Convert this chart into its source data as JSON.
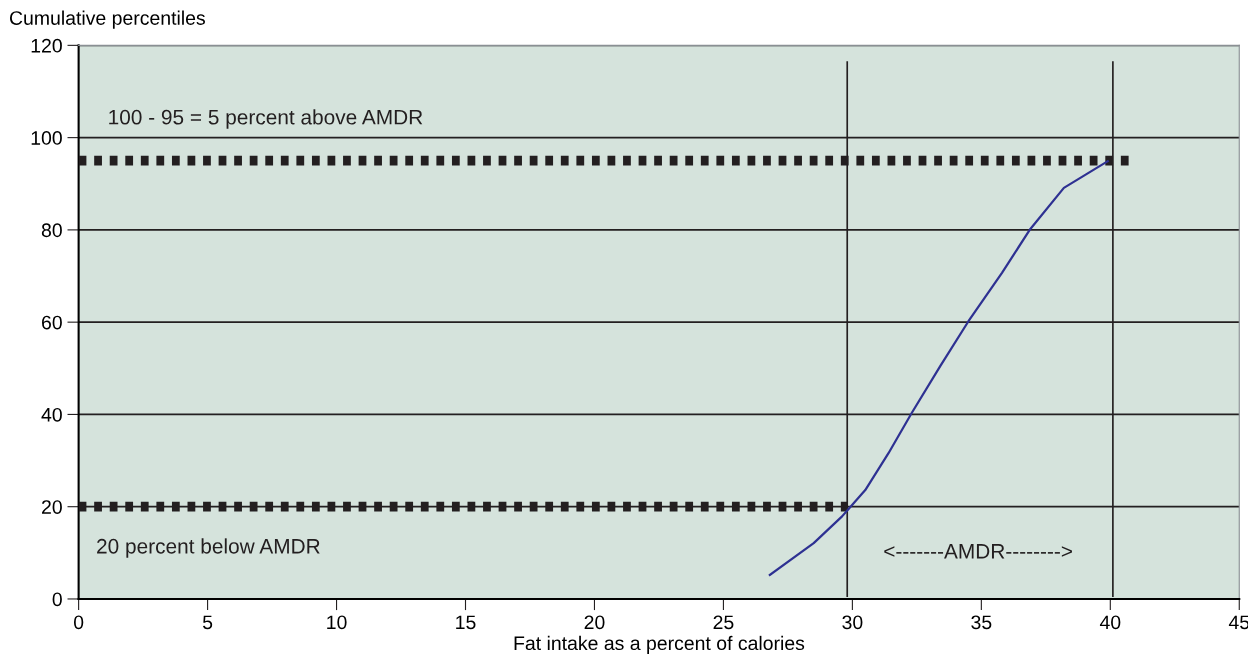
{
  "chart_data": {
    "type": "line",
    "xlabel": "Fat intake as a percent of calories",
    "ylabel": "Cumulative percentiles",
    "xlim": [
      0,
      45
    ],
    "xticks": [
      0,
      5,
      10,
      15,
      20,
      25,
      30,
      35,
      40,
      45
    ],
    "ylim": [
      0,
      120
    ],
    "yticks": [
      0,
      20,
      40,
      60,
      80,
      100,
      120
    ],
    "grid": "y",
    "series": [
      {
        "color": "#2e3192",
        "line_style": "solid",
        "x": [
          26.8,
          28.5,
          29.6,
          30.5,
          31.4,
          32.3,
          33.4,
          34.5,
          35.8,
          36.9,
          38.2,
          39.9
        ],
        "values": [
          5.2,
          12.1,
          17.9,
          23.6,
          31.6,
          40.3,
          50.4,
          60.2,
          70.7,
          80.2,
          89.1,
          94.9
        ]
      },
      {
        "color": "#231f20",
        "line_style": "dotted",
        "x": [
          0,
          41.0
        ],
        "values": [
          95,
          95
        ]
      },
      {
        "color": "#231f20",
        "line_style": "dotted",
        "x": [
          0,
          29.8
        ],
        "values": [
          20,
          20
        ]
      }
    ],
    "ref_lines": [
      {
        "axis": "x",
        "value": 29.8,
        "label": null
      },
      {
        "axis": "x",
        "value": 40.1,
        "label": null
      }
    ],
    "annotations": [
      "100 - 95 = 5 percent above AMDR",
      "20 percent below AMDR",
      "<-------AMDR-------->"
    ]
  }
}
